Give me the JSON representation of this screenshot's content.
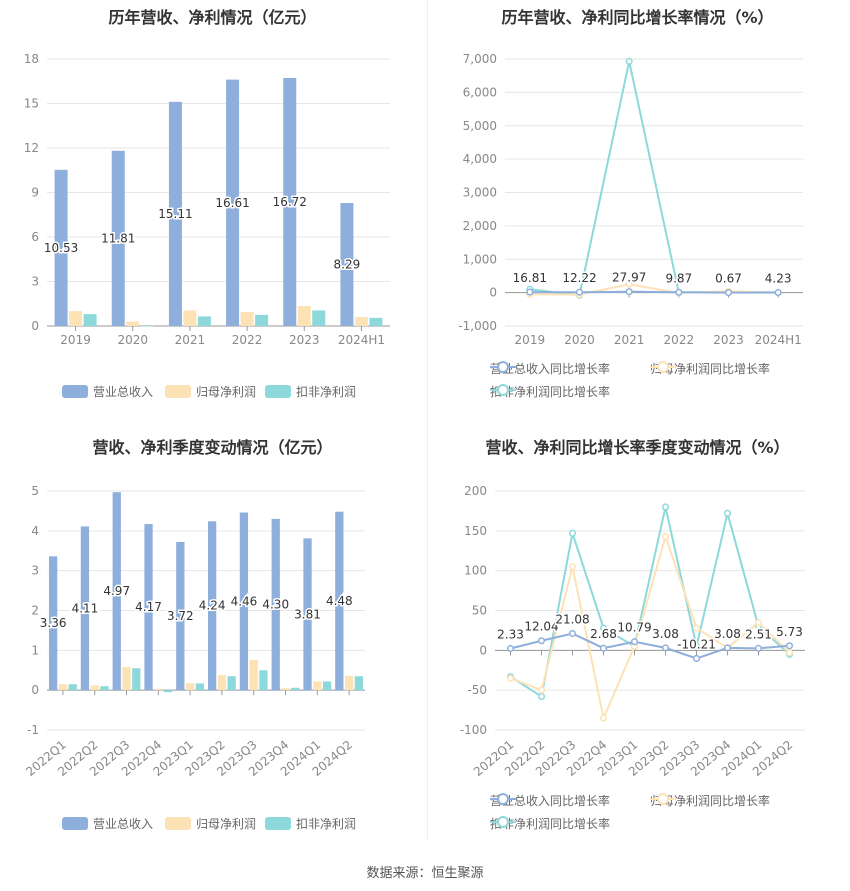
{
  "source_label": "数据来源：恒生聚源",
  "colors": {
    "revenue": "#8eaedb",
    "net": "#fde2b6",
    "deducted": "#8dd8db",
    "axis": "#999999",
    "grid": "#e6e6e6",
    "label": "#333333"
  },
  "chart_data": [
    {
      "type": "bar",
      "title": "历年营收、净利情况（亿元）",
      "categories": [
        "2019",
        "2020",
        "2021",
        "2022",
        "2023",
        "2024H1"
      ],
      "series": [
        {
          "name": "营业总收入",
          "values": [
            10.53,
            11.81,
            15.11,
            16.61,
            16.72,
            8.29
          ],
          "labels": [
            "10.53",
            "11.81",
            "15.11",
            "16.61",
            "16.72",
            "8.29"
          ]
        },
        {
          "name": "归母净利润",
          "values": [
            1.0,
            0.3,
            1.05,
            0.95,
            1.35,
            0.6
          ]
        },
        {
          "name": "扣非净利润",
          "values": [
            0.8,
            0.0,
            0.65,
            0.75,
            1.05,
            0.55
          ]
        }
      ],
      "ylim": [
        0,
        18
      ],
      "yticks": [
        "0",
        "3",
        "6",
        "9",
        "12",
        "15",
        "18"
      ],
      "grid": true,
      "legend": "bottom"
    },
    {
      "type": "line",
      "title": "历年营收、净利同比增长率情况（%）",
      "categories": [
        "2019",
        "2020",
        "2021",
        "2022",
        "2023",
        "2024H1"
      ],
      "series": [
        {
          "name": "营业总收入同比增长率",
          "values": [
            16.81,
            12.22,
            27.97,
            9.87,
            0.67,
            4.23
          ],
          "labels": [
            "16.81",
            "12.22",
            "27.97",
            "9.87",
            "0.67",
            "4.23"
          ]
        },
        {
          "name": "归母净利润同比增长率",
          "values": [
            -50,
            -60,
            250,
            -10,
            40,
            0
          ]
        },
        {
          "name": "扣非净利润同比增长率",
          "values": [
            100,
            -80,
            6930,
            0,
            30,
            0
          ]
        }
      ],
      "ylim": [
        -1000,
        7000
      ],
      "yticks": [
        "-1,000",
        "0",
        "1,000",
        "2,000",
        "3,000",
        "4,000",
        "5,000",
        "6,000",
        "7,000"
      ],
      "grid": true,
      "legend": "bottom"
    },
    {
      "type": "bar",
      "title": "营收、净利季度变动情况（亿元）",
      "categories": [
        "2022Q1",
        "2022Q2",
        "2022Q3",
        "2022Q4",
        "2023Q1",
        "2023Q2",
        "2023Q3",
        "2023Q4",
        "2024Q1",
        "2024Q2"
      ],
      "series": [
        {
          "name": "营业总收入",
          "values": [
            3.36,
            4.11,
            4.97,
            4.17,
            3.72,
            4.24,
            4.46,
            4.3,
            3.81,
            4.48
          ],
          "labels": [
            "3.36",
            "4.11",
            "4.97",
            "4.17",
            "3.72",
            "4.24",
            "4.46",
            "4.30",
            "3.81",
            "4.48"
          ]
        },
        {
          "name": "归母净利润",
          "values": [
            0.15,
            0.12,
            0.58,
            0.03,
            0.18,
            0.38,
            0.76,
            0.05,
            0.22,
            0.36
          ]
        },
        {
          "name": "扣非净利润",
          "values": [
            0.15,
            0.1,
            0.55,
            -0.05,
            0.17,
            0.35,
            0.5,
            0.06,
            0.22,
            0.35
          ]
        }
      ],
      "ylim": [
        -1,
        5
      ],
      "yticks": [
        "-1",
        "0",
        "1",
        "2",
        "3",
        "4",
        "5"
      ],
      "grid": true,
      "legend": "bottom"
    },
    {
      "type": "line",
      "title": "营收、净利同比增长率季度变动情况（%）",
      "categories": [
        "2022Q1",
        "2022Q2",
        "2022Q3",
        "2022Q4",
        "2023Q1",
        "2023Q2",
        "2023Q3",
        "2023Q4",
        "2024Q1",
        "2024Q2"
      ],
      "series": [
        {
          "name": "营业总收入同比增长率",
          "values": [
            2.33,
            12.04,
            21.08,
            2.68,
            10.79,
            3.08,
            -10.21,
            3.08,
            2.51,
            5.73
          ],
          "labels": [
            "2.33",
            "12.04",
            "21.08",
            "2.68",
            "10.79",
            "3.08",
            "-10.21",
            "3.08",
            "2.51",
            "5.73"
          ]
        },
        {
          "name": "归母净利润同比增长率",
          "values": [
            -35,
            -50,
            105,
            -85,
            5,
            143,
            28,
            3,
            35,
            -3
          ]
        },
        {
          "name": "扣非净利润同比增长率",
          "values": [
            -33,
            -58,
            147,
            28,
            5,
            180,
            5,
            172,
            30,
            -5
          ]
        }
      ],
      "ylim": [
        -100,
        200
      ],
      "yticks": [
        "-100",
        "-50",
        "0",
        "50",
        "100",
        "150",
        "200"
      ],
      "grid": true,
      "legend": "bottom"
    }
  ]
}
